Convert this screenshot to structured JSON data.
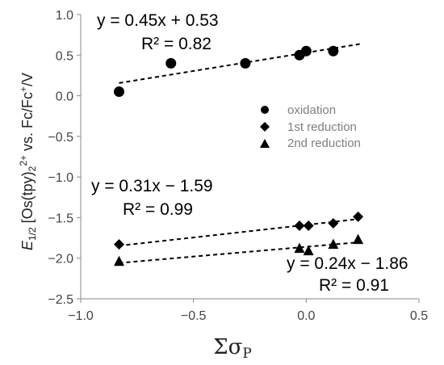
{
  "chart_data": {
    "type": "scatter",
    "xlabel": "Σσ",
    "xlabel_sub": "P",
    "ylabel": {
      "e": "E",
      "e_sub": "1/2",
      "mid": " [Os(tpy)",
      "sub2": "2",
      "sup2plus": "2+",
      "vs": " vs. Fc/Fc",
      "sup_plus": "+",
      "unit": "/V"
    },
    "xlim": [
      -1.0,
      0.5
    ],
    "ylim": [
      -2.5,
      1.0
    ],
    "x_ticks": [
      "−1.0",
      "−0.5",
      "0.0",
      "0.5"
    ],
    "x_tick_values": [
      -1.0,
      -0.5,
      0.0,
      0.5
    ],
    "y_ticks": [
      "1.0",
      "0.5",
      "0.0",
      "−0.5",
      "−1.0",
      "−1.5",
      "−2.0",
      "−2.5"
    ],
    "y_tick_values": [
      1.0,
      0.5,
      0.0,
      -0.5,
      -1.0,
      -1.5,
      -2.0,
      -2.5
    ],
    "grid": false,
    "legend_position": "right",
    "series": [
      {
        "name": "oxidation",
        "marker": "circle",
        "color": "#000000",
        "points": [
          [
            -0.83,
            0.05
          ],
          [
            -0.6,
            0.4
          ],
          [
            -0.27,
            0.4
          ],
          [
            -0.03,
            0.5
          ],
          [
            0.0,
            0.55
          ],
          [
            0.12,
            0.55
          ]
        ],
        "fit": {
          "slope": 0.45,
          "intercept": 0.53,
          "x_range": [
            -0.83,
            0.24
          ]
        },
        "equation": "y = 0.45x + 0.53",
        "r2": "R² = 0.82"
      },
      {
        "name": "1st reduction",
        "marker": "diamond",
        "color": "#000000",
        "points": [
          [
            -0.83,
            -1.83
          ],
          [
            -0.03,
            -1.6
          ],
          [
            0.01,
            -1.6
          ],
          [
            0.12,
            -1.57
          ],
          [
            0.23,
            -1.49
          ]
        ],
        "fit": {
          "slope": 0.31,
          "intercept": -1.59,
          "x_range": [
            -0.83,
            0.23
          ]
        },
        "equation": "y = 0.31x − 1.59",
        "r2": "R² = 0.99"
      },
      {
        "name": "2nd reduction",
        "marker": "triangle",
        "color": "#000000",
        "points": [
          [
            -0.83,
            -2.04
          ],
          [
            -0.03,
            -1.88
          ],
          [
            0.01,
            -1.91
          ],
          [
            0.12,
            -1.83
          ],
          [
            0.23,
            -1.77
          ]
        ],
        "fit": {
          "slope": 0.24,
          "intercept": -1.86,
          "x_range": [
            -0.83,
            0.23
          ]
        },
        "equation": "y = 0.24x − 1.86",
        "r2": "R² = 0.91"
      }
    ]
  }
}
